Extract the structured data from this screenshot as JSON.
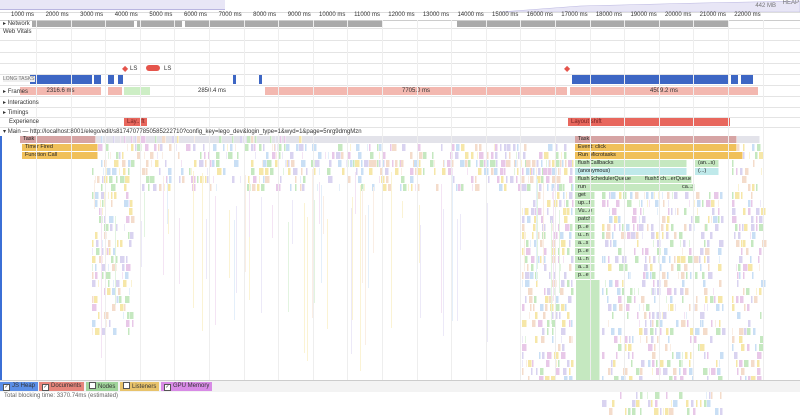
{
  "ruler": {
    "ticks": [
      "1000 ms",
      "2000 ms",
      "3000 ms",
      "4000 ms",
      "5000 ms",
      "6000 ms",
      "7000 ms",
      "8000 ms",
      "9000 ms",
      "10000 ms",
      "11000 ms",
      "12000 ms",
      "13000 ms",
      "14000 ms",
      "15000 ms",
      "16000 ms",
      "17000 ms",
      "18000 ms",
      "19000 ms",
      "20000 ms",
      "21000 ms",
      "22000 ms"
    ]
  },
  "overview": {
    "heap_label": "442 MB",
    "heap_title": "HEAP"
  },
  "tracks": {
    "network": "Network",
    "web_vitals": "Web Vitals",
    "long_tasks": "LONG TASKS",
    "frames": "Frames",
    "interactions": "Interactions",
    "timings": "Timings",
    "experience": "Experience"
  },
  "ls_markers": [
    "LS",
    "LS"
  ],
  "frames": [
    "2316.6 ms",
    "2850.4 ms",
    "7705.0 ms",
    "4509.2 ms"
  ],
  "experience": [
    "Lay...ft",
    "Layout shift"
  ],
  "main": {
    "title": "Main — http://localhost:8001/elego/edit/s8174707785058522271​0?config_key=lego_dev&login_type=1&wyd=1&page=5nrg9dmgMzn",
    "left_stack": [
      "Task",
      "Timer Fired",
      "Function Call"
    ],
    "right_stack": [
      "Task",
      "Event: click",
      "Run Microtasks",
      "flushCallbacks",
      "(anonymous)",
      "flushSchedulerQueue",
      "run",
      "get",
      "up...t",
      "Vu...e",
      "patch",
      "p...e",
      "u...n",
      "a...s",
      "p...e",
      "u...n",
      "a...s",
      "p...e"
    ],
    "side_labels": [
      "(an...s)",
      "(...)",
      "flushSch...erQueue",
      "ca...s"
    ]
  },
  "footer": {
    "checkboxes": [
      {
        "label": "JS Heap",
        "checked": true,
        "color": "#5b8ee6"
      },
      {
        "label": "Documents",
        "checked": true,
        "color": "#e6857b"
      },
      {
        "label": "Nodes",
        "checked": false,
        "color": "#9fd39a"
      },
      {
        "label": "Listeners",
        "checked": false,
        "color": "#e8c36b"
      },
      {
        "label": "GPU Memory",
        "checked": true,
        "color": "#d88be6"
      }
    ]
  },
  "status": "Total blocking time: 3370.74ms (estimated)"
}
